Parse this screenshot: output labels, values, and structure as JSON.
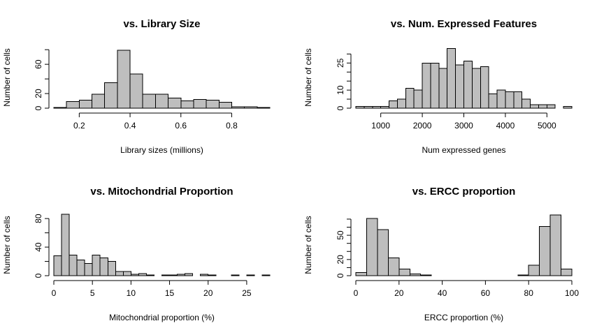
{
  "chart_data": [
    {
      "type": "histogram",
      "title": "vs. Library Size",
      "xlabel": "Library sizes (millions)",
      "ylabel": "Number of cells",
      "xlim": [
        0.1,
        0.95
      ],
      "ylim": [
        0,
        84
      ],
      "xticks": [
        0.2,
        0.4,
        0.6,
        0.8
      ],
      "xtick_labels": [
        "0.2",
        "0.4",
        "0.6",
        "0.8"
      ],
      "yticks": [
        0,
        20,
        40,
        60,
        80
      ],
      "ytick_labels": [
        "0",
        "20",
        "",
        "60",
        ""
      ],
      "bins": [
        0.1,
        0.15,
        0.2,
        0.25,
        0.3,
        0.35,
        0.4,
        0.45,
        0.5,
        0.55,
        0.6,
        0.65,
        0.7,
        0.75,
        0.8,
        0.85,
        0.9,
        0.95
      ],
      "values": [
        1,
        9,
        11,
        19,
        35,
        79,
        47,
        19,
        19,
        14,
        10,
        12,
        11,
        8,
        2,
        2,
        1
      ]
    },
    {
      "type": "histogram",
      "title": "vs. Num. Expressed Features",
      "xlabel": "Num expressed genes",
      "ylabel": "Number of cells",
      "xlim": [
        400,
        5600
      ],
      "ylim": [
        0,
        34
      ],
      "xticks": [
        1000,
        2000,
        3000,
        4000,
        5000
      ],
      "xtick_labels": [
        "1000",
        "2000",
        "3000",
        "4000",
        "5000"
      ],
      "yticks": [
        0,
        5,
        10,
        15,
        20,
        25,
        30
      ],
      "ytick_labels": [
        "0",
        "",
        "10",
        "",
        "",
        "25",
        ""
      ],
      "bins": [
        400,
        600,
        800,
        1000,
        1200,
        1400,
        1600,
        1800,
        2000,
        2200,
        2400,
        2600,
        2800,
        3000,
        3200,
        3400,
        3600,
        3800,
        4000,
        4200,
        4400,
        4600,
        4800,
        5000,
        5200,
        5400,
        5600
      ],
      "values": [
        1,
        1,
        1,
        1,
        4,
        5,
        11,
        10,
        25,
        25,
        22,
        33,
        24,
        26,
        22,
        23,
        8,
        10,
        9,
        9,
        5,
        2,
        2,
        2,
        0,
        1
      ]
    },
    {
      "type": "histogram",
      "title": "vs. Mitochondrial Proportion",
      "xlabel": "Mitochondrial proportion (%)",
      "ylabel": "Number of cells",
      "xlim": [
        0,
        28
      ],
      "ylim": [
        0,
        86
      ],
      "xticks": [
        0,
        5,
        10,
        15,
        20,
        25
      ],
      "xtick_labels": [
        "0",
        "5",
        "10",
        "15",
        "20",
        "25"
      ],
      "yticks": [
        0,
        20,
        40,
        60,
        80
      ],
      "ytick_labels": [
        "0",
        "",
        "40",
        "",
        "80"
      ],
      "bins": [
        0,
        1,
        2,
        3,
        4,
        5,
        6,
        7,
        8,
        9,
        10,
        11,
        12,
        13,
        14,
        15,
        16,
        17,
        18,
        19,
        20,
        21,
        22,
        23,
        24,
        25,
        26,
        27,
        28
      ],
      "values": [
        28,
        86,
        29,
        22,
        17,
        29,
        25,
        20,
        6,
        6,
        2,
        3,
        1,
        0,
        1,
        1,
        2,
        3,
        0,
        2,
        1,
        0,
        0,
        1,
        0,
        1,
        0,
        1
      ]
    },
    {
      "type": "histogram",
      "title": "vs. ERCC proportion",
      "xlabel": "ERCC proportion (%)",
      "ylabel": "Number of cells",
      "xlim": [
        0,
        100
      ],
      "ylim": [
        0,
        76
      ],
      "xticks": [
        0,
        20,
        40,
        60,
        80,
        100
      ],
      "xtick_labels": [
        "0",
        "20",
        "40",
        "60",
        "80",
        "100"
      ],
      "yticks": [
        0,
        10,
        20,
        30,
        40,
        50,
        60,
        70
      ],
      "ytick_labels": [
        "0",
        "",
        "20",
        "",
        "",
        "50",
        "",
        ""
      ],
      "bins": [
        0,
        5,
        10,
        15,
        20,
        25,
        30,
        35,
        40,
        45,
        50,
        55,
        60,
        65,
        70,
        75,
        80,
        85,
        90,
        95,
        100
      ],
      "values": [
        4,
        71,
        57,
        22,
        8,
        2,
        1,
        0,
        0,
        0,
        0,
        0,
        0,
        0,
        0,
        1,
        13,
        61,
        75,
        8
      ]
    }
  ]
}
